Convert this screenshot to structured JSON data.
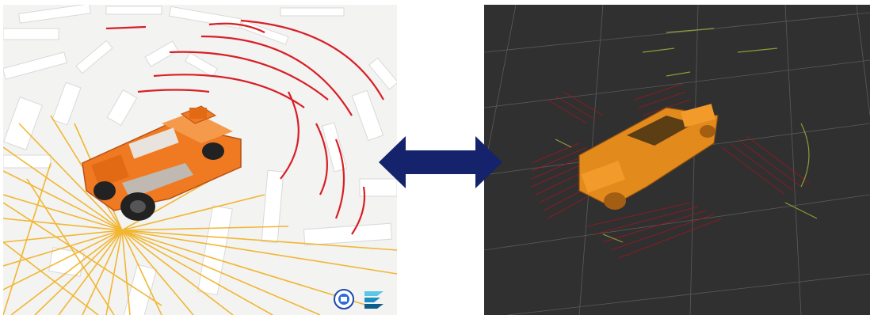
{
  "figure": {
    "left_panel": {
      "icon": "simulation-scene-icon"
    },
    "right_panel": {
      "icon": "pointcloud-viewer-icon"
    },
    "arrow": {
      "icon": "bidirectional-arrow-icon",
      "color": "#14236b"
    },
    "logos": [
      "robot-badge-icon",
      "layered-logo-icon"
    ]
  },
  "colors": {
    "sim_background": "#f1f1f0",
    "viewer_background": "#303030",
    "vehicle_orange": "#f07a22",
    "lidar_yellow": "#f2b01e",
    "lidar_red": "#d81f26",
    "arrow_navy": "#14236b"
  }
}
